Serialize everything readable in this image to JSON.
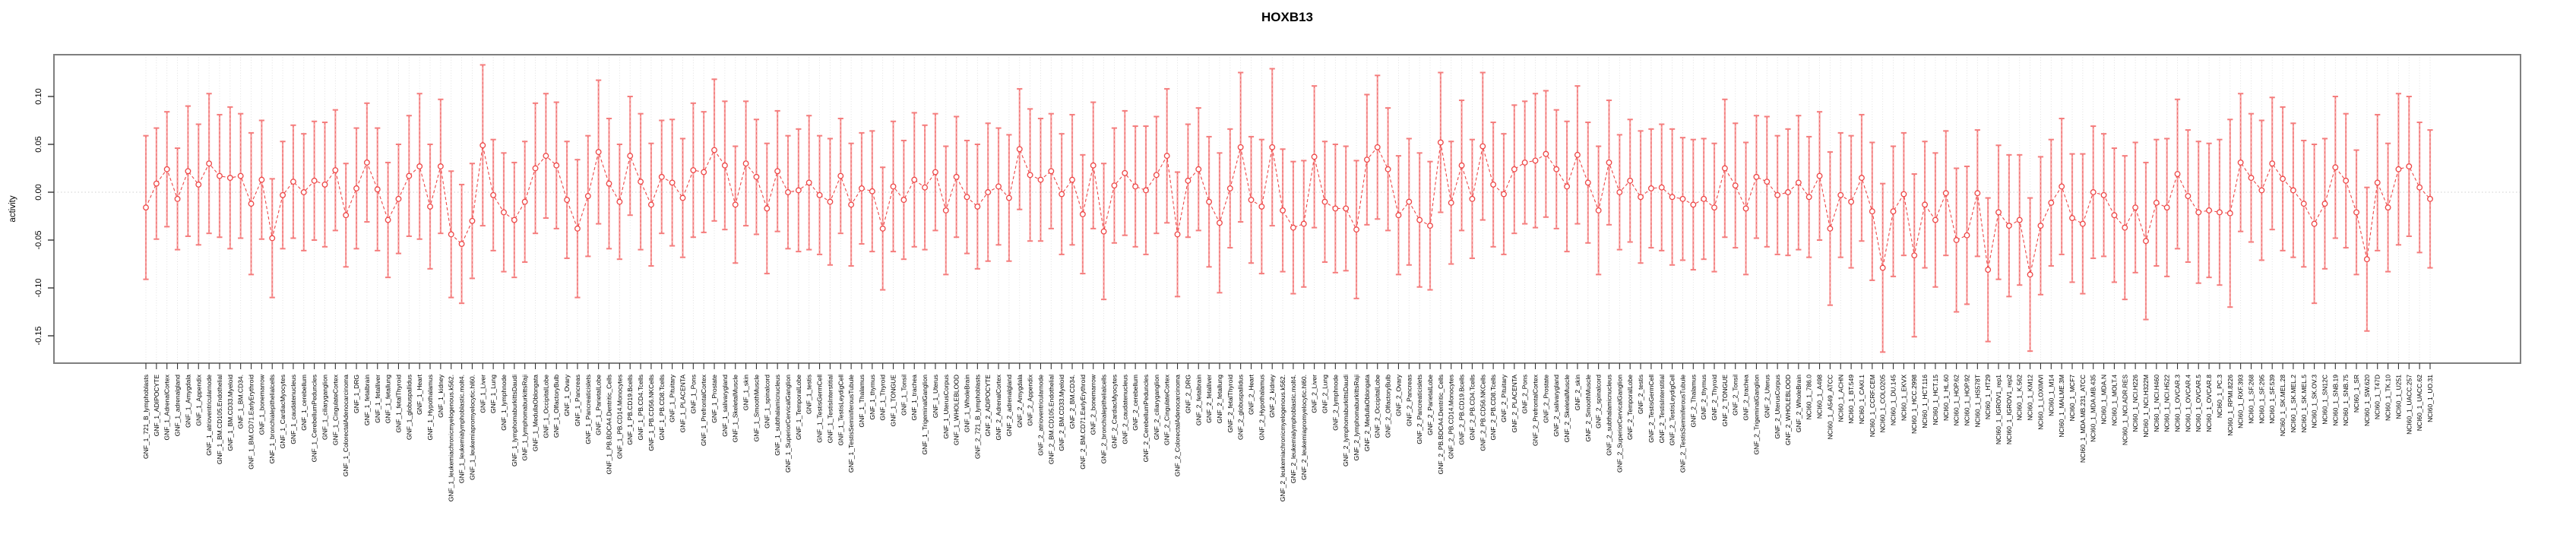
{
  "chart_data": {
    "type": "line",
    "subtype": "errorbar-series",
    "title": "HOXB13",
    "xlabel": "",
    "ylabel": "activity",
    "ylim": [
      -0.179,
      0.144
    ],
    "yticks": [
      0.1,
      0.05,
      0.0,
      -0.05,
      -0.1,
      -0.15
    ],
    "grid": "vertical-dotted-per-category",
    "zero_line": true,
    "legend": "none",
    "series_color": "#ee4747",
    "errorbar_color": "#f8a0a0",
    "errorbar_cap_color": "#f57d7d",
    "marker": "open-circle",
    "categories": [
      "GNF_1_721_B_lymphoblasts",
      "GNF_1_ADIPOCYTE",
      "GNF_1_AdrenalCortex",
      "GNF_1_adrenalgland",
      "GNF_1_Amygdala",
      "GNF_1_Appendix",
      "GNF_1_atrioventricularnode",
      "GNF_1_BM.CD105.Endothelial",
      "GNF_1_BM.CD33.Myeloid",
      "GNF_1_BM.CD34.",
      "GNF_1_BM.CD71.EarlyErythroid",
      "GNF_1_bonemarrow",
      "GNF_1_bronchialepithelialcells",
      "GNF_1_CardiacMyocytes",
      "GNF_1_caudatenucleus",
      "GNF_1_cerebellum",
      "GNF_1_CerebellumPeduncles",
      "GNF_1_ciliaryganglion",
      "GNF_1_CingulateCortex",
      "GNF_1_ColorectalAdenocarcinoma",
      "GNF_1_DRG",
      "GNF_1_fetalbrain",
      "GNF_1_fetalliver",
      "GNF_1_fetallung",
      "GNF_1_fetalThyroid",
      "GNF_1_globuspallidus",
      "GNF_1_Heart",
      "GNF_1_Hypothalamus",
      "GNF_1_kidney",
      "GNF_1_leukemiachronicmyelogenous.k562.",
      "GNF_1_leukemialymphoblastic.molt4.",
      "GNF_1_leukemiapromyelocytic.hl60.",
      "GNF_1_Liver",
      "GNF_1_Lung",
      "GNF_1_lymphnode",
      "GNF_1_lymphomaburkittsDaudi",
      "GNF_1_lymphomaburkittsRaji",
      "GNF_1_MedullaOblongata",
      "GNF_1_OccipitalLobe",
      "GNF_1_OlfactoryBulb",
      "GNF_1_Ovary",
      "GNF_1_Pancreas",
      "GNF_1_Pancreaticislets",
      "GNF_1_ParietalLobe",
      "GNF_1_PB.BDCA4.Dentritic_Cells",
      "GNF_1_PB.CD14.Monocytes",
      "GNF_1_PB.CD19.Bcells",
      "GNF_1_PB.CD4.Tcells",
      "GNF_1_PB.CD56.NKCells",
      "GNF_1_PB.CD8.Tcells",
      "GNF_1_Pituitary",
      "GNF_1_PLACENTA",
      "GNF_1_Pons",
      "GNF_1_PrefrontalCortex",
      "GNF_1_Prostate",
      "GNF_1_salivarygland",
      "GNF_1_SkeletalMuscle",
      "GNF_1_skin",
      "GNF_1_SmoothMuscle",
      "GNF_1_spinalcord",
      "GNF_1_subthalamicnucleus",
      "GNF_1_SuperiorCervicalGanglion",
      "GNF_1_TemporalLobe",
      "GNF_1_testis",
      "GNF_1_TestisGermCell",
      "GNF_1_TestisInterstitial",
      "GNF_1_TestisLeydigCell",
      "GNF_1_TestisSeminiferousTubule",
      "GNF_1_Thalamus",
      "GNF_1_thymus",
      "GNF_1_Thyroid",
      "GNF_1_TONGUE",
      "GNF_1_Tonsil",
      "GNF_1_trachea",
      "GNF_1_TrigeminalGanglion",
      "GNF_1_Uterus",
      "GNF_1_UterusCorpus",
      "GNF_1_WHOLEBLOOD",
      "GNF_1_WholeBrain",
      "GNF_2_721_B_lymphoblasts",
      "GNF_2_ADIPOCYTE",
      "GNF_2_AdrenalCortex",
      "GNF_2_adrenalgland",
      "GNF_2_Amygdala",
      "GNF_2_Appendix",
      "GNF_2_atrioventricularnode",
      "GNF_2_BM.CD105.Endothelial",
      "GNF_2_BM.CD33.Myeloid",
      "GNF_2_BM.CD34.",
      "GNF_2_BM.CD71.EarlyErythroid",
      "GNF_2_bonemarrow",
      "GNF_2_bronchialepithelialcells",
      "GNF_2_CardiacMyocytes",
      "GNF_2_caudatenucleus",
      "GNF_2_cerebellum",
      "GNF_2_CerebellumPeduncles",
      "GNF_2_ciliaryganglion",
      "GNF_2_CingulateCortex",
      "GNF_2_ColorectalAdenocarcinoma",
      "GNF_2_DRG",
      "GNF_2_fetalbrain",
      "GNF_2_fetalliver",
      "GNF_2_fetallung",
      "GNF_2_fetalThyroid",
      "GNF_2_globuspallidus",
      "GNF_2_Heart",
      "GNF_2_Hypothalamus",
      "GNF_2_kidney",
      "GNF_2_leukemiachronicmyelogenous.k562.",
      "GNF_2_leukemialymphoblastic.molt4.",
      "GNF_2_leukemiapromyelocytic.hl60.",
      "GNF_2_Liver",
      "GNF_2_Lung",
      "GNF_2_lymphnode",
      "GNF_2_lymphomaburkittsDaudi",
      "GNF_2_lymphomaburkittsRaji",
      "GNF_2_MedullaOblongata",
      "GNF_2_OccipitalLobe",
      "GNF_2_OlfactoryBulb",
      "GNF_2_Ovary",
      "GNF_2_Pancreas",
      "GNF_2_Pancreaticislets",
      "GNF_2_ParietalLobe",
      "GNF_2_PB.BDCA4.Dentritic_Cells",
      "GNF_2_PB.CD14.Monocytes",
      "GNF_2_PB.CD19.Bcells",
      "GNF_2_PB.CD4.Tcells",
      "GNF_2_PB.CD56.NKCells",
      "GNF_2_PB.CD8.Tcells",
      "GNF_2_Pituitary",
      "GNF_2_PLACENTA",
      "GNF_2_Pons",
      "GNF_2_PrefrontalCortex",
      "GNF_2_Prostate",
      "GNF_2_salivarygland",
      "GNF_2_SkeletalMuscle",
      "GNF_2_skin",
      "GNF_2_SmoothMuscle",
      "GNF_2_spinalcord",
      "GNF_2_subthalamicnucleus",
      "GNF_2_SuperiorCervicalGanglion",
      "GNF_2_TemporalLobe",
      "GNF_2_testis",
      "GNF_2_TestisGermCell",
      "GNF_2_TestisInterstitial",
      "GNF_2_TestisLeydigCell",
      "GNF_2_TestisSeminiferousTubule",
      "GNF_2_Thalamus",
      "GNF_2_thymus",
      "GNF_2_Thyroid",
      "GNF_2_TONGUE",
      "GNF_2_Tonsil",
      "GNF_2_trachea",
      "GNF_2_TrigeminalGanglion",
      "GNF_2_Uterus",
      "GNF_2_UterusCorpus",
      "GNF_2_WHOLEBLOOD",
      "GNF_2_WholeBrain",
      "NCI60_1_786.0",
      "NCI60_1_A498",
      "NCI60_1_A549_ATCC",
      "NCI60_1_ACHN",
      "NCI60_1_BT.549",
      "NCI60_1_CAKI.1",
      "NCI60_1_CCRF.CEM",
      "NCI60_1_COLO205",
      "NCI60_1_DU.145",
      "NCI60_1_EKVX",
      "NCI60_1_HCC.2998",
      "NCI60_1_HCT.116",
      "NCI60_1_HCT.15",
      "NCI60_1_HL.60",
      "NCI60_1_HOP.62",
      "NCI60_1_HOP.92",
      "NCI60_1_HS578T",
      "NCI60_1_HT29",
      "NCI60_1_IGROV1_rep1",
      "NCI60_1_IGROV1_rep2",
      "NCI60_1_K.562",
      "NCI60_1_KM12",
      "NCI60_1_LOXIMVI",
      "NCI60_1_M14",
      "NCI60_1_MALME.3M",
      "NCI60_1_MCF7",
      "NCI60_1_MDA.MB.231_ATCC",
      "NCI60_1_MDA.MB.435",
      "NCI60_1_MDA.N",
      "NCI60_1_MOLT.4",
      "NCI60_1_NCI.ADR.RES",
      "NCI60_1_NCI.H226",
      "NCI60_1_NCI.H322M",
      "NCI60_1_NCI.H460",
      "NCI60_1_NCI.H522",
      "NCI60_1_OVCAR.3",
      "NCI60_1_OVCAR.4",
      "NCI60_1_OVCAR.5",
      "NCI60_1_OVCAR.8",
      "NCI60_1_PC.3",
      "NCI60_1_RPMI.8226",
      "NCI60_1_RXF.393",
      "NCI60_1_SF.268",
      "NCI60_1_SF.295",
      "NCI60_1_SF.539",
      "NCI60_1_SK.MEL.28",
      "NCI60_1_SK.MEL.2",
      "NCI60_1_SK.MEL.5",
      "NCI60_1_SK.OV.3",
      "NCI60_1_SN12C",
      "NCI60_1_SNB.19",
      "NCI60_1_SNB.75",
      "NCI60_1_SR",
      "NCI60_1_SW.620",
      "NCI60_1_T47D",
      "NCI60_1_TK.10",
      "NCI60_1_U251",
      "NCI60_1_UACC.257",
      "NCI60_1_UACC.62",
      "NCI60_1_UO.31"
    ],
    "values": [
      -0.016,
      0.009,
      0.024,
      -0.007,
      0.022,
      0.008,
      0.03,
      0.017,
      0.015,
      0.017,
      -0.012,
      0.013,
      -0.048,
      -0.003,
      0.011,
      0.0,
      0.012,
      0.008,
      0.023,
      -0.024,
      0.004,
      0.031,
      0.003,
      -0.029,
      -0.007,
      0.017,
      0.027,
      -0.015,
      0.027,
      -0.044,
      -0.054,
      -0.03,
      0.049,
      -0.003,
      -0.021,
      -0.029,
      -0.01,
      0.025,
      0.038,
      0.028,
      -0.008,
      -0.038,
      -0.004,
      0.042,
      0.009,
      -0.01,
      0.038,
      0.011,
      -0.013,
      0.016,
      0.01,
      -0.006,
      0.023,
      0.021,
      0.044,
      0.028,
      -0.013,
      0.03,
      0.016,
      -0.017,
      0.022,
      0.0,
      0.002,
      0.01,
      -0.003,
      -0.01,
      0.017,
      -0.013,
      0.004,
      0.001,
      -0.038,
      0.006,
      -0.008,
      0.013,
      0.005,
      0.021,
      -0.019,
      0.016,
      -0.005,
      -0.015,
      0.0,
      0.006,
      -0.006,
      0.045,
      0.018,
      0.013,
      0.022,
      -0.002,
      0.013,
      -0.023,
      0.028,
      -0.041,
      0.007,
      0.02,
      0.006,
      0.002,
      0.018,
      0.038,
      -0.044,
      0.012,
      0.024,
      -0.01,
      -0.032,
      0.004,
      0.047,
      -0.008,
      -0.015,
      0.047,
      -0.019,
      -0.037,
      -0.033,
      0.037,
      -0.01,
      -0.017,
      -0.017,
      -0.039,
      0.034,
      0.047,
      0.024,
      -0.024,
      -0.01,
      -0.029,
      -0.035,
      0.052,
      -0.011,
      0.028,
      -0.007,
      0.048,
      0.008,
      -0.002,
      0.024,
      0.031,
      0.033,
      0.04,
      0.024,
      0.006,
      0.039,
      0.01,
      -0.019,
      0.031,
      0.0,
      0.012,
      -0.005,
      0.004,
      0.005,
      -0.005,
      -0.007,
      -0.013,
      -0.007,
      -0.016,
      0.025,
      0.007,
      -0.017,
      0.016,
      0.011,
      -0.003,
      0.0,
      0.01,
      -0.005,
      0.017,
      -0.038,
      -0.003,
      -0.01,
      0.015,
      -0.02,
      -0.079,
      -0.02,
      -0.002,
      -0.066,
      -0.013,
      -0.029,
      -0.001,
      -0.05,
      -0.045,
      -0.001,
      -0.081,
      -0.021,
      -0.035,
      -0.029,
      -0.086,
      -0.035,
      -0.011,
      0.006,
      -0.027,
      -0.033,
      0.0,
      -0.003,
      -0.024,
      -0.037,
      -0.016,
      -0.051,
      -0.011,
      -0.016,
      0.019,
      -0.004,
      -0.021,
      -0.019,
      -0.021,
      -0.022,
      0.031,
      0.015,
      0.002,
      0.03,
      0.014,
      0.002,
      -0.012,
      -0.033,
      -0.012,
      0.026,
      0.012,
      -0.021,
      -0.07,
      0.01,
      -0.016,
      0.024,
      0.027,
      0.005,
      -0.007
    ],
    "errors": [
      0.075,
      0.058,
      0.06,
      0.053,
      0.068,
      0.063,
      0.073,
      0.064,
      0.074,
      0.065,
      0.074,
      0.062,
      0.062,
      0.056,
      0.059,
      0.061,
      0.062,
      0.065,
      0.063,
      0.054,
      0.063,
      0.062,
      0.064,
      0.06,
      0.057,
      0.063,
      0.076,
      0.065,
      0.07,
      0.066,
      0.062,
      0.06,
      0.084,
      0.058,
      0.062,
      0.06,
      0.063,
      0.068,
      0.065,
      0.066,
      0.061,
      0.072,
      0.063,
      0.075,
      0.068,
      0.06,
      0.062,
      0.071,
      0.064,
      0.059,
      0.066,
      0.062,
      0.07,
      0.063,
      0.074,
      0.067,
      0.061,
      0.065,
      0.06,
      0.068,
      0.063,
      0.059,
      0.064,
      0.07,
      0.062,
      0.066,
      0.06,
      0.064,
      0.058,
      0.063,
      0.064,
      0.068,
      0.062,
      0.07,
      0.065,
      0.061,
      0.067,
      0.063,
      0.059,
      0.065,
      0.072,
      0.061,
      0.066,
      0.063,
      0.069,
      0.064,
      0.06,
      0.063,
      0.068,
      0.062,
      0.066,
      0.071,
      0.06,
      0.065,
      0.063,
      0.067,
      0.061,
      0.07,
      0.065,
      0.059,
      0.064,
      0.068,
      0.073,
      0.062,
      0.078,
      0.066,
      0.07,
      0.082,
      0.064,
      0.069,
      0.066,
      0.074,
      0.063,
      0.067,
      0.065,
      0.072,
      0.068,
      0.075,
      0.064,
      0.062,
      0.066,
      0.07,
      0.067,
      0.073,
      0.064,
      0.068,
      0.062,
      0.077,
      0.065,
      0.063,
      0.067,
      0.064,
      0.07,
      0.066,
      0.062,
      0.068,
      0.072,
      0.063,
      0.067,
      0.065,
      0.06,
      0.064,
      0.069,
      0.062,
      0.066,
      0.071,
      0.064,
      0.068,
      0.063,
      0.067,
      0.072,
      0.065,
      0.069,
      0.064,
      0.068,
      0.062,
      0.066,
      0.07,
      0.063,
      0.067,
      0.08,
      0.065,
      0.069,
      0.066,
      0.072,
      0.088,
      0.068,
      0.064,
      0.085,
      0.066,
      0.07,
      0.065,
      0.075,
      0.072,
      0.066,
      0.075,
      0.07,
      0.074,
      0.068,
      0.08,
      0.072,
      0.066,
      0.071,
      0.067,
      0.073,
      0.069,
      0.064,
      0.07,
      0.075,
      0.068,
      0.082,
      0.066,
      0.072,
      0.078,
      0.069,
      0.074,
      0.07,
      0.076,
      0.098,
      0.072,
      0.067,
      0.073,
      0.069,
      0.075,
      0.07,
      0.066,
      0.083,
      0.068,
      0.074,
      0.07,
      0.065,
      0.075,
      0.071,
      0.067,
      0.079,
      0.073,
      0.068,
      0.072
    ]
  }
}
